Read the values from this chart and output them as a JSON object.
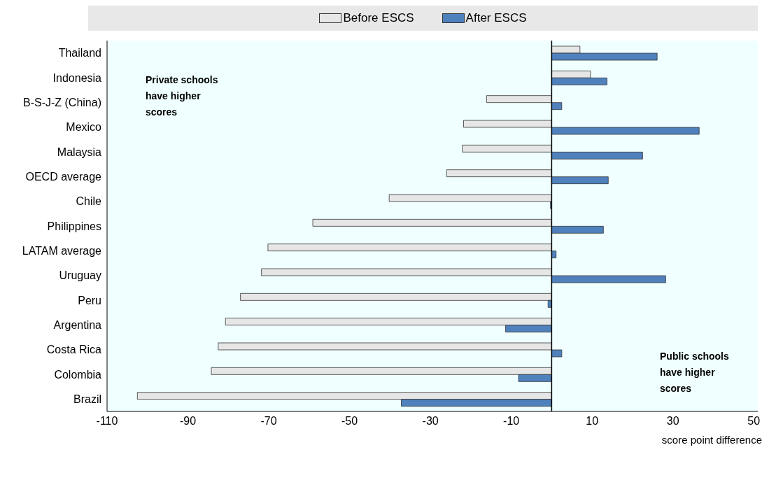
{
  "chart_data": {
    "type": "bar",
    "orientation": "horizontal",
    "xlabel": "score point difference",
    "categories": [
      "Thailand",
      "Indonesia",
      "B-S-J-Z (China)",
      "Mexico",
      "Malaysia",
      "OECD average",
      "Chile",
      "Philippines",
      "LATAM average",
      "Uruguay",
      "Peru",
      "Argentina",
      "Costa Rica",
      "Colombia",
      "Brazil"
    ],
    "series": [
      {
        "name": "Before ESCS",
        "color": "#e6e6e6",
        "values": [
          7.0,
          9.6,
          -16.1,
          -21.8,
          -22.1,
          -26.0,
          -40.2,
          -59.1,
          -70.2,
          -71.8,
          -77.0,
          -80.7,
          -82.5,
          -84.2,
          -102.5
        ]
      },
      {
        "name": "After ESCS",
        "color": "#4f81bd",
        "values": [
          26.1,
          13.7,
          2.5,
          36.5,
          22.5,
          14.0,
          -0.3,
          12.8,
          1.1,
          28.2,
          -0.9,
          -11.4,
          2.5,
          -8.2,
          -37.2
        ]
      }
    ],
    "xlim": [
      -110,
      51
    ],
    "xticks": [
      -110,
      -90,
      -70,
      -50,
      -30,
      -10,
      10,
      30,
      50
    ],
    "legend": "top",
    "annotations": [
      "Private schools have higher scores",
      "Public schools have higher scores"
    ]
  }
}
